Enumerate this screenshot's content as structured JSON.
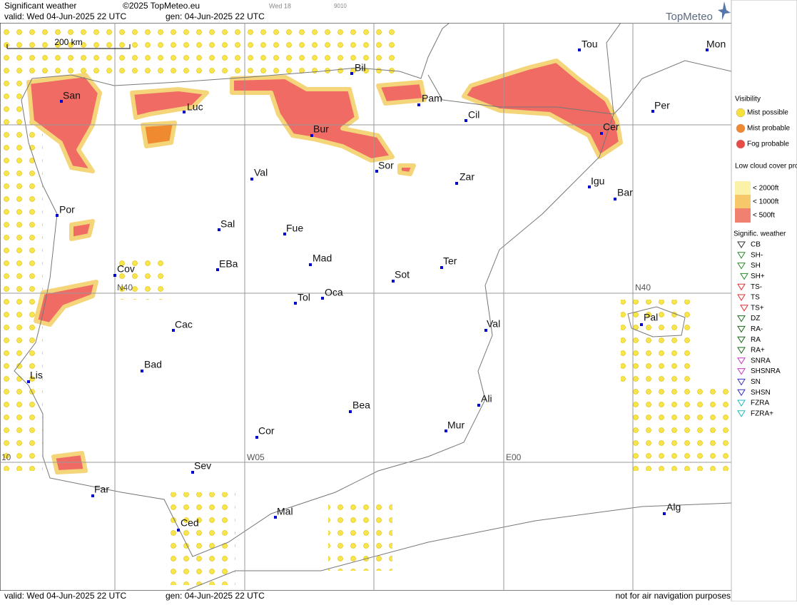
{
  "header": {
    "title": "Significant weather",
    "copyright": "©2025 TopMeteo.eu",
    "day": "Wed 18",
    "code": "9010",
    "valid": "valid:  Wed  04-Jun-2025  22 UTC",
    "gen": "gen: 04-Jun-2025 22 UTC",
    "brand": "TopMeteo"
  },
  "footer": {
    "valid": "valid:  Wed  04-Jun-2025  22 UTC",
    "gen": "gen: 04-Jun-2025 22 UTC",
    "disclaimer": "not for air navigation purposes"
  },
  "map": {
    "scale": "200 km",
    "grid_labels": [
      "N40",
      "N40",
      "W05",
      "E00",
      "10"
    ],
    "cities": [
      "Mon",
      "Bil",
      "Tou",
      "San",
      "Luc",
      "Pam",
      "Per",
      "Cil",
      "Bur",
      "Cer",
      "Sor",
      "Val",
      "Zar",
      "Igu",
      "Bar",
      "Por",
      "Sal",
      "Fue",
      "Mad",
      "EBa",
      "Cov",
      "Sot",
      "Ter",
      "Tol",
      "Oca",
      "Pal",
      "Cac",
      "Val",
      "Bad",
      "Lis",
      "Bea",
      "Ali",
      "Cor",
      "Mur",
      "Sev",
      "Far",
      "Mal",
      "Alg",
      "Ced"
    ]
  },
  "legend": {
    "visibility": {
      "title": "Visibility",
      "items": [
        "Mist possible",
        "Mist probable",
        "Fog probable"
      ]
    },
    "low_cloud": {
      "title": "Low cloud cover probable",
      "items": [
        "< 2000ft",
        "< 1000ft",
        "<  500ft"
      ]
    },
    "weather": {
      "title": "Signific. weather",
      "items": [
        "CB",
        "SH-",
        "SH",
        "SH+",
        "TS-",
        "TS",
        "TS+",
        "DZ",
        "RA-",
        "RA",
        "RA+",
        "SNRA",
        "SHSNRA",
        "SN",
        "SHSN",
        "FZRA",
        "FZRA+"
      ]
    }
  }
}
